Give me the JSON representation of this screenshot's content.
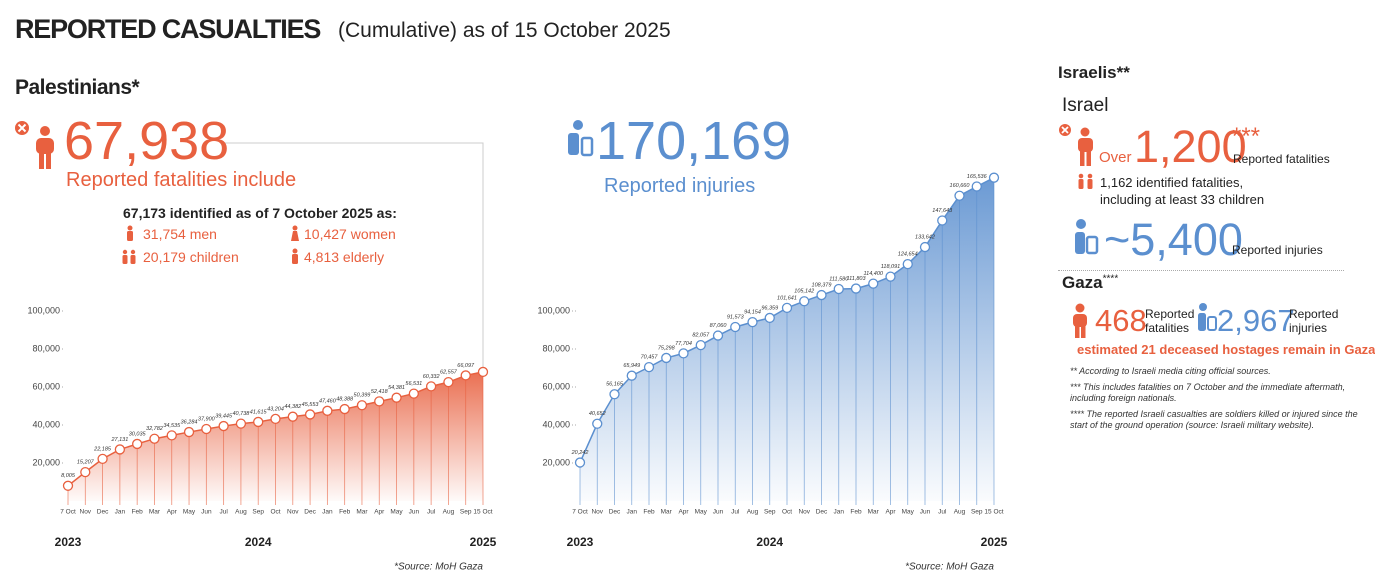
{
  "header": {
    "title": "REPORTED CASUALTIES",
    "subtitle": "(Cumulative) as of 15 October 2025"
  },
  "palestinians": {
    "heading": "Palestinians*",
    "fatalities": "67,938",
    "fatalities_label": "Reported fatalities include",
    "identified": "67,173 identified as of 7 October 2025 as:",
    "breakdown": [
      "31,754 men",
      "10,427 women",
      "20,179 children",
      "4,813 elderly"
    ],
    "injuries": "170,169",
    "injuries_label": "Reported injuries"
  },
  "israelis": {
    "heading": "Israelis**",
    "israel": {
      "heading": "Israel",
      "fatal_prefix": "Over",
      "fatalities": "1,200",
      "fatal_mark": "***",
      "fatal_label": "Reported fatalities",
      "identified": "1,162 identified fatalities,",
      "children": "including at least 33 children",
      "injuries": "~5,400",
      "injuries_label": "Reported injuries"
    },
    "gaza": {
      "heading": "Gaza",
      "heading_mark": "****",
      "fatalities": "468",
      "fatal_label": "Reported fatalities",
      "injuries": "2,967",
      "injuries_label": "Reported injuries",
      "hostages": "estimated 21 deceased hostages remain in Gaza"
    },
    "notes": [
      "** According to Israeli media citing official sources.",
      "*** This includes fatalities on 7 October and the immediate aftermath, including foreign nationals.",
      "**** The reported Israeli casualties are soldiers killed or injured since the start of the ground operation (source: Israeli military website)."
    ]
  },
  "chart_data": [
    {
      "type": "area",
      "categories": [
        "7 Oct",
        "Nov",
        "Dec",
        "Jan",
        "Feb",
        "Mar",
        "Apr",
        "May",
        "Jun",
        "Jul",
        "Aug",
        "Sep",
        "Oct",
        "Nov",
        "Dec",
        "Jan",
        "Feb",
        "Mar",
        "Apr",
        "May",
        "Jun",
        "Jul",
        "Aug",
        "Sep",
        "15 Oct"
      ],
      "x_group_labels": [
        "2023",
        "2024",
        "2025"
      ],
      "series": [
        {
          "name": "Reported fatalities",
          "color": "#e8603f",
          "values": [
            8005,
            15207,
            22185,
            27131,
            30035,
            32782,
            34535,
            36284,
            37900,
            39445,
            40738,
            41615,
            43204,
            44382,
            45553,
            47460,
            48388,
            50399,
            52418,
            54381,
            56531,
            60332,
            62557,
            66097,
            67938
          ],
          "value_labels": [
            "8,005",
            "15,207",
            "22,185",
            "27,131",
            "30,035",
            "32,782",
            "34,535",
            "36,284",
            "37,900",
            "39,445",
            "40,738",
            "41,615",
            "43,204",
            "44,382",
            "45,553",
            "47,460",
            "48,388",
            "50,399",
            "52,418",
            "54,381",
            "56,531",
            "60,332",
            "62,557",
            "66,097",
            null
          ]
        }
      ],
      "ylim": [
        0,
        180000
      ],
      "yticks": [
        {
          "value": 20000,
          "label": "20,000"
        },
        {
          "value": 40000,
          "label": "40,000"
        },
        {
          "value": 60000,
          "label": "60,000"
        },
        {
          "value": 80000,
          "label": "80,000"
        },
        {
          "value": 100000,
          "label": "100,000"
        }
      ],
      "source": "*Source: MoH Gaza"
    },
    {
      "type": "area",
      "categories": [
        "7 Oct",
        "Nov",
        "Dec",
        "Jan",
        "Feb",
        "Mar",
        "Apr",
        "May",
        "Jun",
        "Jul",
        "Aug",
        "Sep",
        "Oct",
        "Nov",
        "Dec",
        "Jan",
        "Feb",
        "Mar",
        "Apr",
        "May",
        "Jun",
        "Jul",
        "Aug",
        "Sep",
        "15 Oct"
      ],
      "x_group_labels": [
        "2023",
        "2024",
        "2025"
      ],
      "series": [
        {
          "name": "Reported injuries",
          "color": "#5b8fcf",
          "values": [
            20242,
            40652,
            56165,
            65949,
            70457,
            75298,
            77704,
            82057,
            87060,
            91573,
            94154,
            96359,
            101641,
            105142,
            108379,
            111580,
            111803,
            114400,
            118091,
            124654,
            133642,
            147643,
            160660,
            165536,
            170169
          ],
          "value_labels": [
            "20,242",
            "40,652",
            "56,165",
            "65,949",
            "70,457",
            "75,298",
            "77,704",
            "82,057",
            "87,060",
            "91,573",
            "94,154",
            "96,359",
            "101,641",
            "105,142",
            "108,379",
            "111,580",
            "111,803",
            "114,400",
            "118,091",
            "124,654",
            "133,642",
            "147,643",
            "160,660",
            "165,536",
            null
          ]
        }
      ],
      "ylim": [
        0,
        180000
      ],
      "yticks": [
        {
          "value": 20000,
          "label": "20,000"
        },
        {
          "value": 40000,
          "label": "40,000"
        },
        {
          "value": 60000,
          "label": "60,000"
        },
        {
          "value": 80000,
          "label": "80,000"
        },
        {
          "value": 100000,
          "label": "100,000"
        }
      ],
      "source": "*Source: MoH Gaza"
    }
  ]
}
